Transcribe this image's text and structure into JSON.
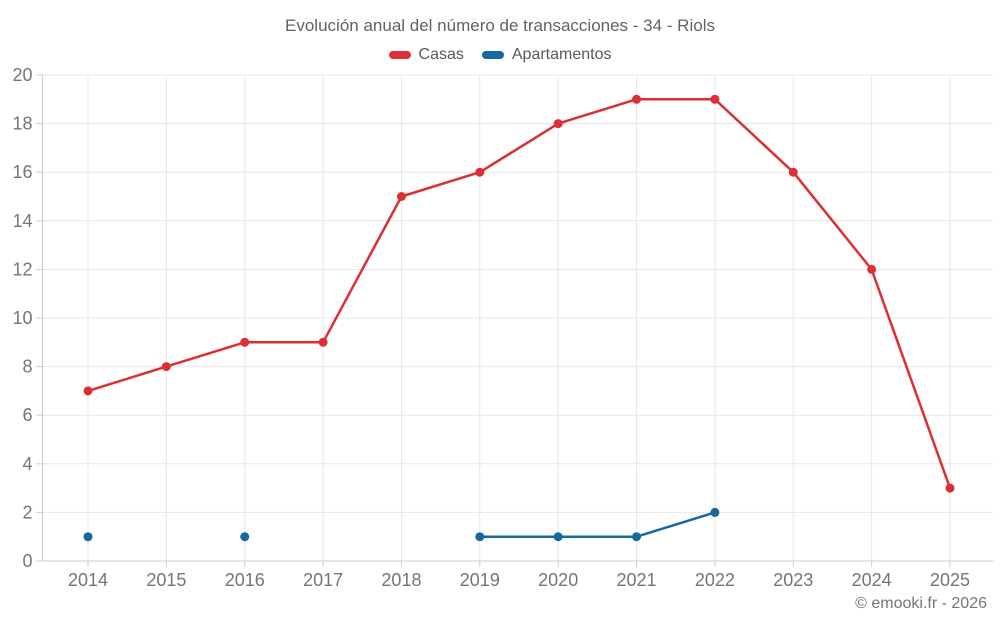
{
  "header": {
    "title": "Evolución anual del número de transacciones - 34 - Riols"
  },
  "legend": [
    {
      "label": "Casas",
      "color": "#dc2f34"
    },
    {
      "label": "Apartamentos",
      "color": "#16699f"
    }
  ],
  "footer": {
    "credit": "© emooki.fr - 2026"
  },
  "style": {
    "grid_color": "#e7e7e7",
    "axis_color": "#cccccc",
    "label_color": "#757575",
    "title_color": "#5f6368",
    "background": "#ffffff"
  },
  "chart_data": {
    "type": "line",
    "title": "Evolución anual del número de transacciones - 34 - Riols",
    "xlabel": "",
    "ylabel": "",
    "categories": [
      "2014",
      "2015",
      "2016",
      "2017",
      "2018",
      "2019",
      "2020",
      "2021",
      "2022",
      "2023",
      "2024",
      "2025"
    ],
    "series": [
      {
        "name": "Casas",
        "color": "#dc2f34",
        "values": [
          7,
          8,
          9,
          9,
          15,
          16,
          18,
          19,
          19,
          16,
          12,
          3
        ]
      },
      {
        "name": "Apartamentos",
        "color": "#16699f",
        "values": [
          1,
          null,
          1,
          null,
          null,
          1,
          1,
          1,
          2,
          null,
          null,
          null
        ]
      }
    ],
    "ylim": [
      0,
      20
    ],
    "ytick_step": 2,
    "grid": true,
    "legend_position": "top"
  }
}
